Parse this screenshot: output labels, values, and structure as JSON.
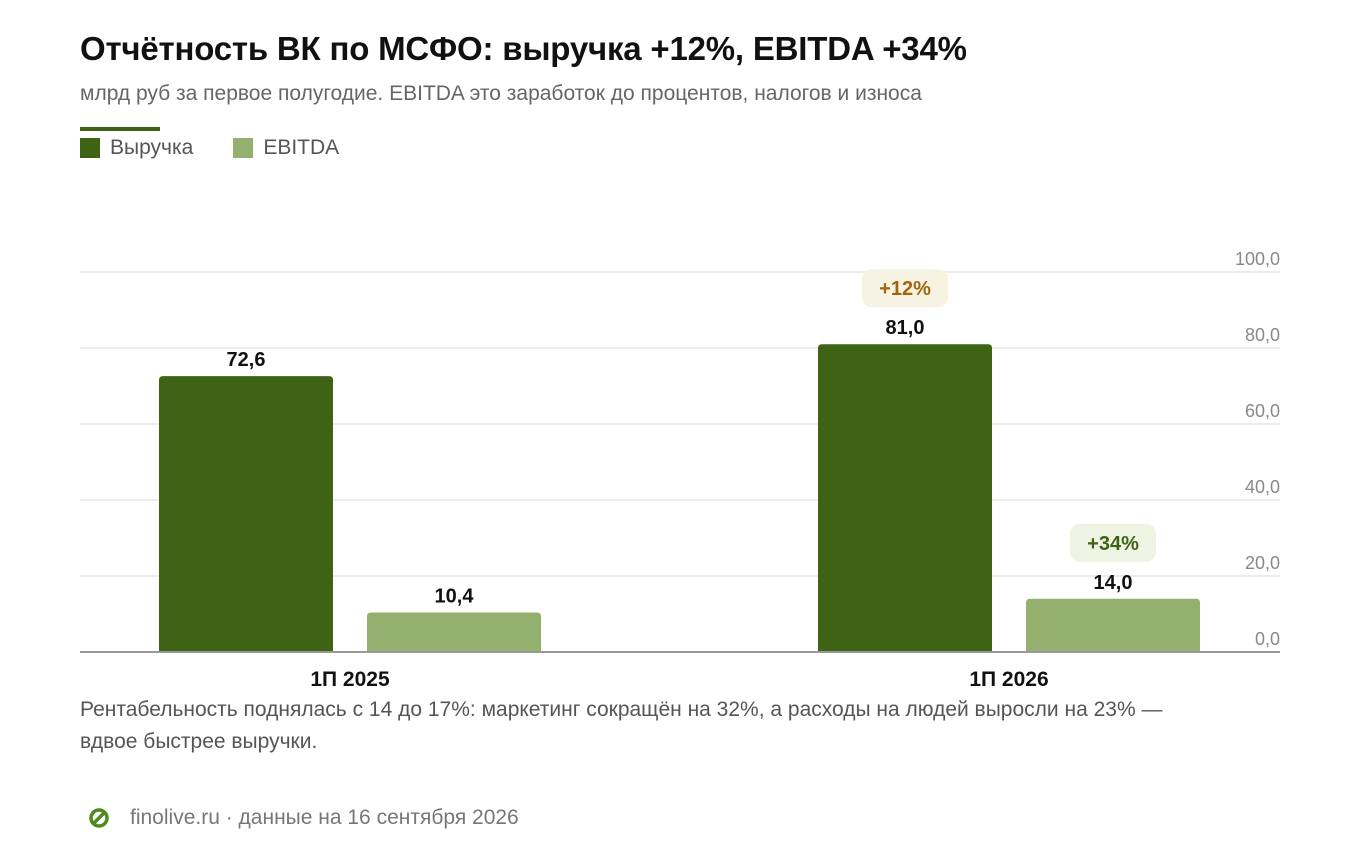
{
  "title": "Отчётность ВК по МСФО: выручка +12%, EBITDA +34%",
  "subtitle": "млрд руб за первое полугодие. EBITDA это заработок до процентов, налогов и износа",
  "note": "Рентабельность поднялась с 14 до 17%: маркетинг сокращён на 32%, а расходы на людей выросли на 23% — вдвое быстрее выручки.",
  "footer": {
    "source": "finolive.ru · данные на 16 сентября 2026"
  },
  "colors": {
    "revenue": "#3e6314",
    "ebitda": "#93b06f",
    "badge_revenue_text": "#a0660c",
    "badge_revenue_bg": "#f7f3e3",
    "badge_ebitda_text": "#3e6314",
    "badge_ebitda_bg": "#eef3e3",
    "grid": "#e6e6e6",
    "axis": "#888888"
  },
  "chart_data": {
    "type": "bar",
    "categories": [
      "1П 2025",
      "1П 2026"
    ],
    "series": [
      {
        "name": "Выручка",
        "values": [
          72.6,
          81.0
        ],
        "labels": [
          "72,6",
          "81,0"
        ],
        "change_badge": "+12%"
      },
      {
        "name": "EBITDA",
        "values": [
          10.4,
          14.0
        ],
        "labels": [
          "10,4",
          "14,0"
        ],
        "change_badge": "+34%"
      }
    ],
    "ylim": [
      0,
      100
    ],
    "yticks": [
      "0,0",
      "20,0",
      "40,0",
      "60,0",
      "80,0",
      "100,0"
    ],
    "ytick_values": [
      0,
      20,
      40,
      60,
      80,
      100
    ],
    "grid": true,
    "legend_position": "top-left",
    "yaxis_position": "right"
  }
}
